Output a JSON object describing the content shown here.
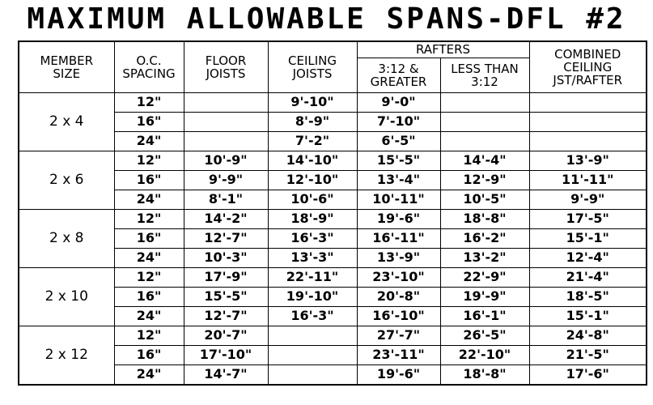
{
  "title": "MAXIMUM ALLOWABLE SPANS-DFL #2",
  "table": {
    "header": {
      "member_size": "MEMBER\nSIZE",
      "oc_spacing": "O.C.\nSPACING",
      "floor_joists": "FLOOR\nJOISTS",
      "ceiling_joists": "CEILING\nJOISTS",
      "rafters": "RAFTERS",
      "rafters_steep": "3:12 &\nGREATER",
      "rafters_low": "LESS THAN\n3:12",
      "combined": "COMBINED\nCEILING\nJST/RAFTER"
    },
    "groups": [
      {
        "size": "2 x 4",
        "rows": [
          [
            "12\"",
            null,
            "9'-10\"",
            "9'-0\"",
            null,
            null
          ],
          [
            "16\"",
            null,
            "8'-9\"",
            "7'-10\"",
            null,
            null
          ],
          [
            "24\"",
            null,
            "7'-2\"",
            "6'-5\"",
            null,
            null
          ]
        ]
      },
      {
        "size": "2 x 6",
        "rows": [
          [
            "12\"",
            "10'-9\"",
            "14'-10\"",
            "15'-5\"",
            "14'-4\"",
            "13'-9\""
          ],
          [
            "16\"",
            "9'-9\"",
            "12'-10\"",
            "13'-4\"",
            "12'-9\"",
            "11'-11\""
          ],
          [
            "24\"",
            "8'-1\"",
            "10'-6\"",
            "10'-11\"",
            "10'-5\"",
            "9'-9\""
          ]
        ]
      },
      {
        "size": "2 x 8",
        "rows": [
          [
            "12\"",
            "14'-2\"",
            "18'-9\"",
            "19'-6\"",
            "18'-8\"",
            "17'-5\""
          ],
          [
            "16\"",
            "12'-7\"",
            "16'-3\"",
            "16'-11\"",
            "16'-2\"",
            "15'-1\""
          ],
          [
            "24\"",
            "10'-3\"",
            "13'-3\"",
            "13'-9\"",
            "13'-2\"",
            "12'-4\""
          ]
        ]
      },
      {
        "size": "2 x 10",
        "rows": [
          [
            "12\"",
            "17'-9\"",
            "22'-11\"",
            "23'-10\"",
            "22'-9\"",
            "21'-4\""
          ],
          [
            "16\"",
            "15'-5\"",
            "19'-10\"",
            "20'-8\"",
            "19'-9\"",
            "18'-5\""
          ],
          [
            "24\"",
            "12'-7\"",
            "16'-3\"",
            "16'-10\"",
            "16'-1\"",
            "15'-1\""
          ]
        ]
      },
      {
        "size": "2 x 12",
        "rows": [
          [
            "12\"",
            "20'-7\"",
            null,
            "27'-7\"",
            "26'-5\"",
            "24'-8\""
          ],
          [
            "16\"",
            "17'-10\"",
            null,
            "23'-11\"",
            "22'-10\"",
            "21'-5\""
          ],
          [
            "24\"",
            "14'-7\"",
            null,
            "19'-6\"",
            "18'-8\"",
            "17'-6\""
          ]
        ]
      }
    ]
  }
}
